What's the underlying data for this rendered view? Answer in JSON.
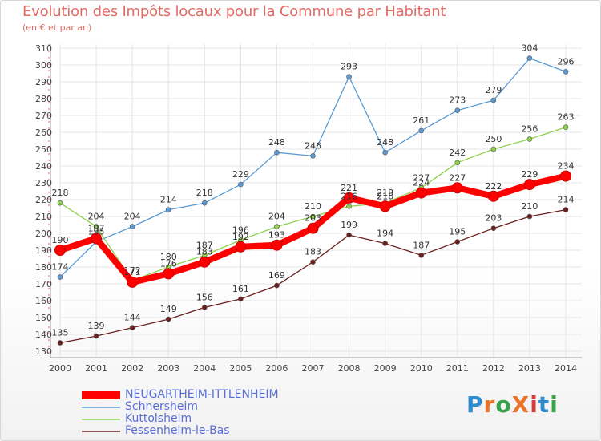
{
  "title": "Evolution des Impôts locaux pour la Commune par Habitant",
  "subtitle": "(en € et par an)",
  "logo": {
    "text": "ProXiti",
    "letters": [
      "P",
      "r",
      "o",
      "X",
      "i",
      "t",
      "i"
    ],
    "colors": [
      "#2f8ccf",
      "#e8742a",
      "#3aa24a",
      "#e8742a",
      "#d23c3c",
      "#2f8ccf",
      "#3aa24a"
    ]
  },
  "chart_data": {
    "type": "line",
    "title": "Evolution des Impôts locaux pour la Commune par Habitant",
    "subtitle": "(en € et par an)",
    "x": [
      "2000",
      "2001",
      "2002",
      "2003",
      "2004",
      "2005",
      "2006",
      "2007",
      "2008",
      "2009",
      "2010",
      "2011",
      "2012",
      "2013",
      "2014"
    ],
    "ylim": [
      130,
      310
    ],
    "yticks": [
      130,
      140,
      150,
      160,
      170,
      180,
      190,
      200,
      210,
      220,
      230,
      240,
      250,
      260,
      270,
      280,
      290,
      300,
      310
    ],
    "grid": true,
    "legend_position": "bottom-left",
    "series": [
      {
        "name": "NEUGARTHEIM-ITTLENHEIM",
        "color": "#ff0000",
        "values": [
          190,
          197,
          171,
          176,
          183,
          192,
          193,
          203,
          221,
          216,
          224,
          227,
          222,
          229,
          234
        ]
      },
      {
        "name": "Schnersheim",
        "color": "#5b9bd5",
        "values": [
          174,
          195,
          204,
          214,
          218,
          229,
          248,
          246,
          293,
          248,
          261,
          273,
          279,
          304,
          296
        ]
      },
      {
        "name": "Kuttolsheim",
        "color": "#8fd14f",
        "values": [
          218,
          204,
          172,
          180,
          187,
          196,
          204,
          210,
          216,
          218,
          227,
          242,
          250,
          256,
          263
        ]
      },
      {
        "name": "Fessenheim-le-Bas",
        "color": "#6b1f1f",
        "values": [
          135,
          139,
          144,
          149,
          156,
          161,
          169,
          183,
          199,
          194,
          187,
          195,
          203,
          210,
          214
        ]
      }
    ]
  }
}
